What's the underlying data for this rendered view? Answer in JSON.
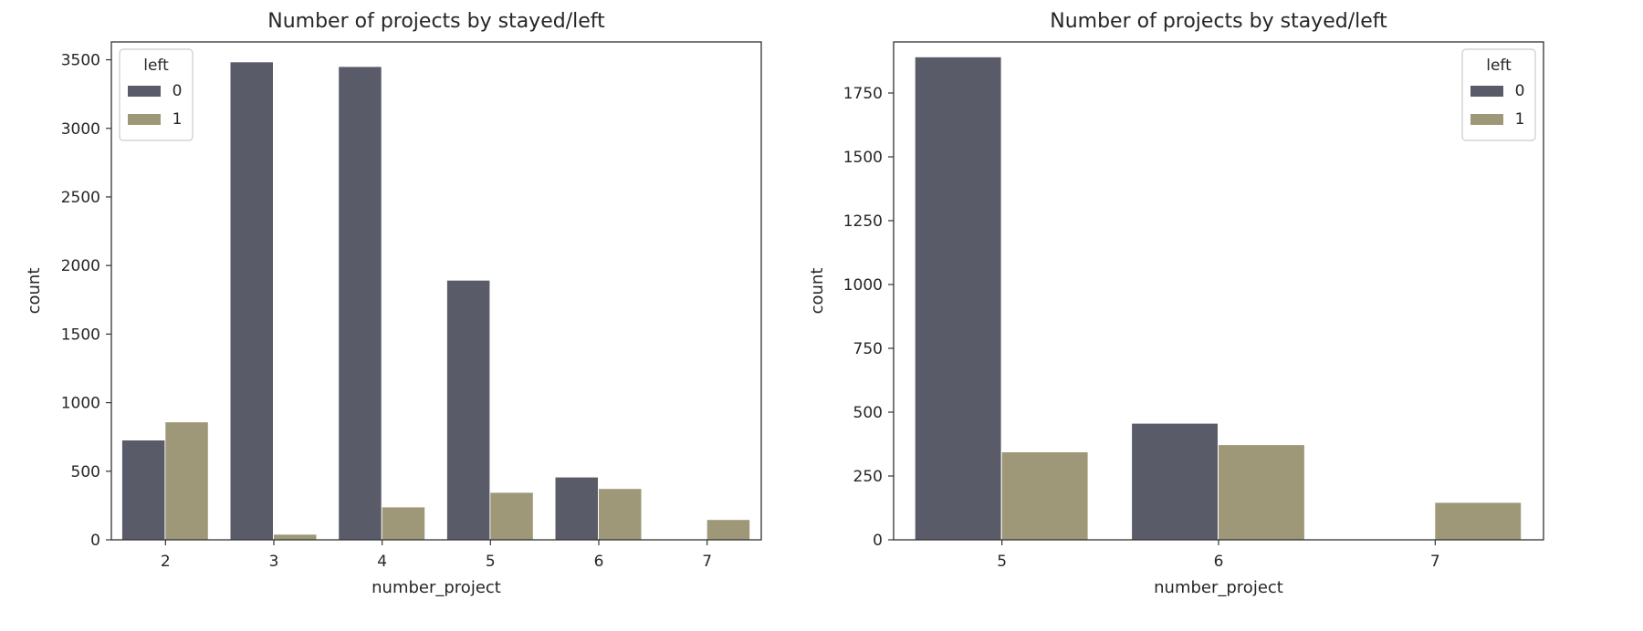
{
  "chart_data": [
    {
      "type": "bar",
      "title": "Number of projects by stayed/left",
      "xlabel": "number_project",
      "ylabel": "count",
      "categories": [
        "2",
        "3",
        "4",
        "5",
        "6",
        "7"
      ],
      "series": [
        {
          "name": "0",
          "values": [
            725,
            3482,
            3448,
            1890,
            455,
            0
          ],
          "color": "#5a5b69"
        },
        {
          "name": "1",
          "values": [
            857,
            38,
            237,
            343,
            371,
            145
          ],
          "color": "#9e9879"
        }
      ],
      "ylim": [
        0,
        3630
      ],
      "yticks": [
        0,
        500,
        1000,
        1500,
        2000,
        2500,
        3000,
        3500
      ],
      "legend": {
        "title": "left",
        "placement": "top-left"
      },
      "grid": false
    },
    {
      "type": "bar",
      "title": "Number of projects by stayed/left",
      "xlabel": "number_project",
      "ylabel": "count",
      "categories": [
        "5",
        "6",
        "7"
      ],
      "series": [
        {
          "name": "0",
          "values": [
            1890,
            455,
            0
          ],
          "color": "#5a5b69"
        },
        {
          "name": "1",
          "values": [
            343,
            371,
            145
          ],
          "color": "#9e9879"
        }
      ],
      "ylim": [
        0,
        1950
      ],
      "yticks": [
        0,
        250,
        500,
        750,
        1000,
        1250,
        1500,
        1750
      ],
      "legend": {
        "title": "left",
        "placement": "top-right"
      },
      "grid": false
    }
  ]
}
